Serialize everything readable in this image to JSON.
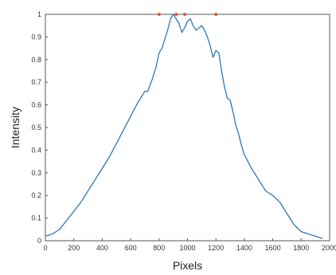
{
  "chart_data": {
    "type": "line",
    "title": "",
    "xlabel": "Pixels",
    "ylabel": "Intensity",
    "xlim": [
      0,
      2000
    ],
    "ylim": [
      0,
      1
    ],
    "x_ticks": [
      "0",
      "200",
      "400",
      "600",
      "800",
      "1000",
      "1200",
      "1400",
      "1600",
      "1800",
      "2000"
    ],
    "y_ticks": [
      "0",
      "0.1",
      "0.2",
      "0.3",
      "0.4",
      "0.5",
      "0.6",
      "0.7",
      "0.8",
      "0.9",
      "1"
    ],
    "grid": false,
    "box": true,
    "series": [
      {
        "color": "#2a7ab8",
        "x": [
          0,
          50,
          100,
          150,
          200,
          250,
          300,
          350,
          400,
          450,
          500,
          550,
          600,
          650,
          700,
          720,
          750,
          780,
          800,
          820,
          840,
          860,
          880,
          900,
          920,
          940,
          960,
          980,
          1000,
          1020,
          1040,
          1060,
          1080,
          1100,
          1120,
          1140,
          1160,
          1180,
          1200,
          1220,
          1240,
          1260,
          1280,
          1300,
          1320,
          1340,
          1360,
          1380,
          1400,
          1450,
          1500,
          1550,
          1600,
          1650,
          1700,
          1750,
          1800,
          1850,
          1900,
          1950
        ],
        "y": [
          0.02,
          0.03,
          0.05,
          0.09,
          0.13,
          0.17,
          0.22,
          0.27,
          0.32,
          0.37,
          0.43,
          0.49,
          0.55,
          0.61,
          0.66,
          0.66,
          0.71,
          0.77,
          0.83,
          0.85,
          0.89,
          0.93,
          0.98,
          1.0,
          0.98,
          0.96,
          0.92,
          0.94,
          0.97,
          0.98,
          0.95,
          0.93,
          0.94,
          0.95,
          0.93,
          0.9,
          0.86,
          0.81,
          0.84,
          0.83,
          0.75,
          0.68,
          0.63,
          0.62,
          0.57,
          0.51,
          0.47,
          0.42,
          0.38,
          0.32,
          0.27,
          0.22,
          0.2,
          0.17,
          0.12,
          0.07,
          0.04,
          0.03,
          0.02,
          0.01
        ]
      }
    ],
    "markers": {
      "color": "#e05a2a",
      "x": [
        800,
        920,
        980,
        1200
      ],
      "y": [
        1.0,
        1.0,
        1.0,
        1.0
      ]
    }
  }
}
